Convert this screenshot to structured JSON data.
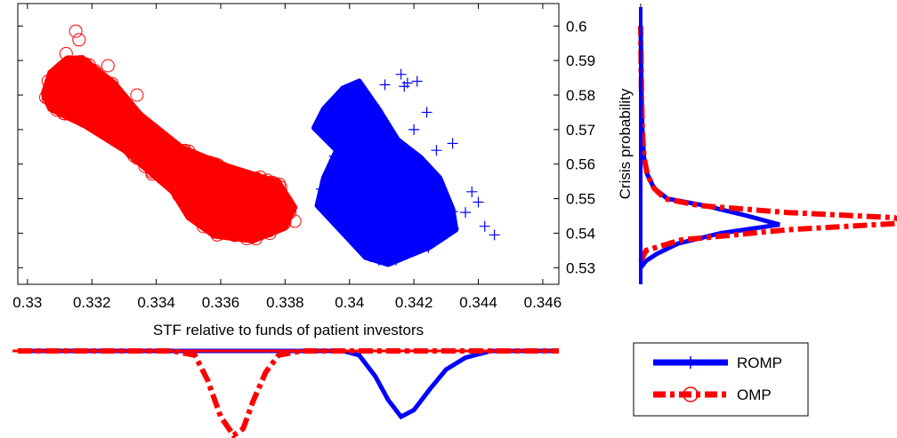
{
  "chart_data": [
    {
      "type": "scatter",
      "title": "",
      "xlabel": "STF relative to funds of patient investors",
      "ylabel": "",
      "xlim": [
        0.3297,
        0.3465
      ],
      "ylim": [
        0.5252,
        0.6065
      ],
      "x_ticks": [
        "0.33",
        "0.332",
        "0.334",
        "0.336",
        "0.338",
        "0.34",
        "0.342",
        "0.344",
        "0.346"
      ],
      "y_ticks": [
        "0.53",
        "0.54",
        "0.55",
        "0.56",
        "0.57",
        "0.58",
        "0.59",
        "0.6"
      ],
      "y_axis_side": "right",
      "grid": false,
      "series": [
        {
          "name": "OMP",
          "marker": "circle",
          "color": "#ff0000",
          "cluster_outline": [
            [
              0.3305,
              0.5805
            ],
            [
              0.3307,
              0.5865
            ],
            [
              0.3312,
              0.5905
            ],
            [
              0.3317,
              0.5908
            ],
            [
              0.3327,
              0.5835
            ],
            [
              0.3335,
              0.5745
            ],
            [
              0.3348,
              0.5648
            ],
            [
              0.3362,
              0.5595
            ],
            [
              0.3378,
              0.5548
            ],
            [
              0.3383,
              0.5475
            ],
            [
              0.338,
              0.5415
            ],
            [
              0.337,
              0.5378
            ],
            [
              0.3358,
              0.5392
            ],
            [
              0.335,
              0.5445
            ],
            [
              0.3345,
              0.552
            ],
            [
              0.333,
              0.564
            ],
            [
              0.3318,
              0.571
            ],
            [
              0.3307,
              0.576
            ]
          ],
          "outliers": [
            [
              0.3315,
              0.5985
            ],
            [
              0.3316,
              0.596
            ],
            [
              0.3318,
              0.589
            ],
            [
              0.3321,
              0.587
            ],
            [
              0.3325,
              0.5885
            ],
            [
              0.3312,
              0.592
            ],
            [
              0.3334,
              0.58
            ],
            [
              0.3358,
              0.557
            ],
            [
              0.3374,
              0.554
            ],
            [
              0.3383,
              0.5435
            ]
          ]
        },
        {
          "name": "ROMP",
          "marker": "plus",
          "color": "#0000ff",
          "cluster_outline": [
            [
              0.3389,
              0.5705
            ],
            [
              0.3392,
              0.576
            ],
            [
              0.3398,
              0.582
            ],
            [
              0.3403,
              0.584
            ],
            [
              0.3409,
              0.576
            ],
            [
              0.3415,
              0.567
            ],
            [
              0.3422,
              0.562
            ],
            [
              0.3428,
              0.556
            ],
            [
              0.3432,
              0.547
            ],
            [
              0.3433,
              0.541
            ],
            [
              0.3425,
              0.536
            ],
            [
              0.3412,
              0.531
            ],
            [
              0.3405,
              0.533
            ],
            [
              0.3398,
              0.54
            ],
            [
              0.339,
              0.548
            ],
            [
              0.3392,
              0.556
            ],
            [
              0.3396,
              0.564
            ]
          ],
          "outliers": [
            [
              0.3421,
              0.584
            ],
            [
              0.3418,
              0.5835
            ],
            [
              0.3417,
              0.5825
            ],
            [
              0.3427,
              0.564
            ],
            [
              0.3432,
              0.566
            ],
            [
              0.3438,
              0.552
            ],
            [
              0.344,
              0.549
            ],
            [
              0.3442,
              0.542
            ],
            [
              0.3445,
              0.5395
            ],
            [
              0.3436,
              0.546
            ],
            [
              0.3416,
              0.586
            ],
            [
              0.3411,
              0.583
            ],
            [
              0.3424,
              0.575
            ],
            [
              0.342,
              0.57
            ]
          ]
        }
      ]
    },
    {
      "type": "line",
      "title": "",
      "ylabel": "Crisis probability",
      "orientation": "vertical-density",
      "description_axis": "right-hand marginal density of crisis probability",
      "ylim": [
        0.5252,
        0.6065
      ],
      "series": [
        {
          "name": "ROMP",
          "color": "#0000ff",
          "style": "solid-plus",
          "y": [
            0.53,
            0.532,
            0.534,
            0.537,
            0.54,
            0.5425,
            0.545,
            0.548,
            0.55,
            0.553,
            0.557,
            0.562,
            0.57,
            0.58,
            0.6
          ],
          "density": [
            0.0,
            0.02,
            0.06,
            0.14,
            0.3,
            0.52,
            0.4,
            0.24,
            0.1,
            0.05,
            0.025,
            0.012,
            0.006,
            0.003,
            0.0
          ]
        },
        {
          "name": "OMP",
          "color": "#ff0000",
          "style": "dash-dot-circle",
          "y": [
            0.532,
            0.535,
            0.538,
            0.541,
            0.543,
            0.5445,
            0.546,
            0.548,
            0.55,
            0.553,
            0.557,
            0.562,
            0.57,
            0.58,
            0.6
          ],
          "density": [
            0.0,
            0.02,
            0.15,
            0.55,
            1.0,
            0.95,
            0.55,
            0.22,
            0.09,
            0.05,
            0.025,
            0.012,
            0.006,
            0.003,
            0.0
          ]
        }
      ]
    },
    {
      "type": "line",
      "title": "",
      "orientation": "horizontal-density-inverted",
      "description_axis": "bottom marginal density of STF",
      "xlim": [
        0.3297,
        0.3465
      ],
      "series": [
        {
          "name": "OMP",
          "color": "#ff0000",
          "style": "dash-dot-circle",
          "x": [
            0.3297,
            0.3345,
            0.3352,
            0.3356,
            0.336,
            0.3364,
            0.3367,
            0.337,
            0.3374,
            0.3378,
            0.3385,
            0.3465
          ],
          "density": [
            0.0,
            0.0,
            0.05,
            0.35,
            0.78,
            1.0,
            0.92,
            0.6,
            0.25,
            0.05,
            0.0,
            0.0
          ]
        },
        {
          "name": "ROMP",
          "color": "#0000ff",
          "style": "solid-plus",
          "x": [
            0.3297,
            0.3398,
            0.3403,
            0.3408,
            0.3412,
            0.3416,
            0.342,
            0.3425,
            0.343,
            0.3436,
            0.3444,
            0.3465
          ],
          "density": [
            0.0,
            0.0,
            0.05,
            0.3,
            0.58,
            0.78,
            0.7,
            0.45,
            0.22,
            0.08,
            0.0,
            0.0
          ]
        }
      ]
    }
  ],
  "legend": {
    "placement": "bottom-right",
    "items": [
      {
        "label": "ROMP",
        "color": "#0000ff",
        "style": "solid-plus"
      },
      {
        "label": "OMP",
        "color": "#ff0000",
        "style": "dash-dot-circle"
      }
    ]
  }
}
